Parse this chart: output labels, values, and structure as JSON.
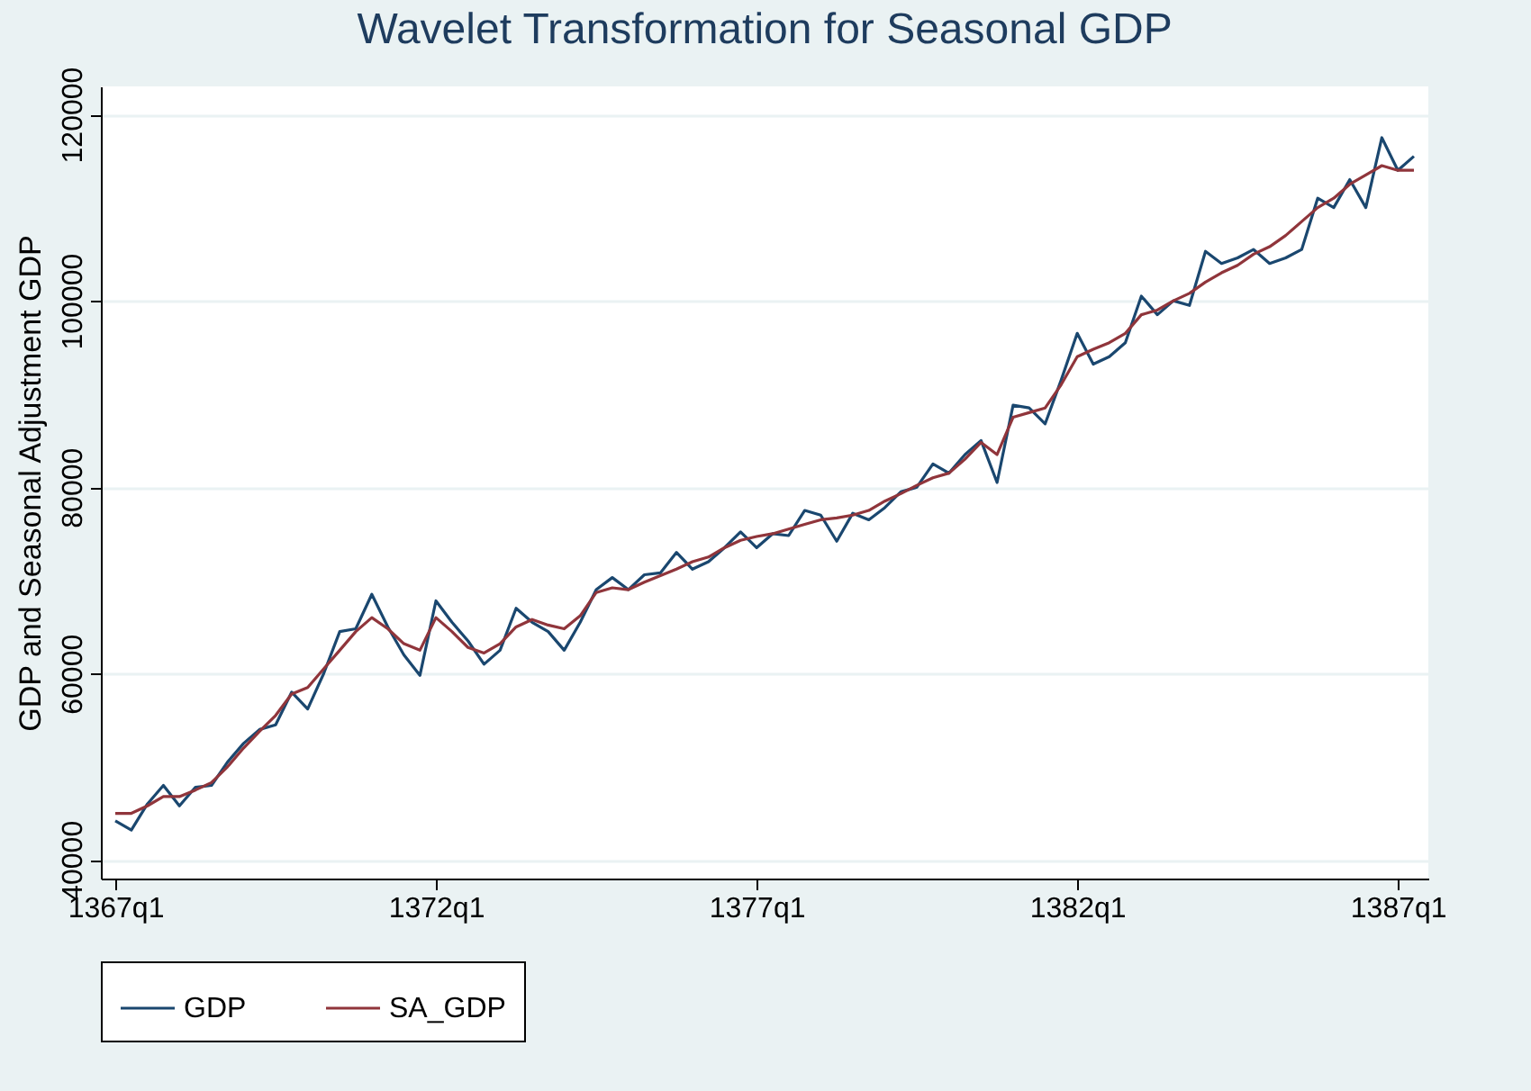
{
  "chart_data": {
    "type": "line",
    "title": "Wavelet Transformation for Seasonal GDP",
    "ylabel": "GDP and Seasonal Adjustment GDP",
    "categories": [
      "1367q1",
      null,
      null,
      null,
      null,
      null,
      null,
      null,
      null,
      null,
      null,
      null,
      null,
      null,
      null,
      null,
      null,
      null,
      null,
      null,
      "1372q1",
      null,
      null,
      null,
      null,
      null,
      null,
      null,
      null,
      null,
      null,
      null,
      null,
      null,
      null,
      null,
      null,
      null,
      null,
      null,
      "1377q1",
      null,
      null,
      null,
      null,
      null,
      null,
      null,
      null,
      null,
      null,
      null,
      null,
      null,
      null,
      null,
      null,
      null,
      null,
      null,
      "1382q1",
      null,
      null,
      null,
      null,
      null,
      null,
      null,
      null,
      null,
      null,
      null,
      null,
      null,
      null,
      null,
      null,
      null,
      null,
      null,
      "1387q1",
      null
    ],
    "series": [
      {
        "name": "GDP",
        "color": "#1a476f",
        "values": [
          44200,
          43200,
          46000,
          48000,
          45800,
          47800,
          48000,
          50500,
          52500,
          54000,
          54500,
          58000,
          56200,
          60000,
          64500,
          64800,
          68500,
          65000,
          62000,
          59800,
          67800,
          65500,
          63500,
          61000,
          62500,
          67000,
          65500,
          64500,
          62500,
          65500,
          69000,
          70300,
          69000,
          70600,
          70800,
          73000,
          71200,
          72000,
          73500,
          75200,
          73500,
          75000,
          74800,
          77500,
          77000,
          74200,
          77200,
          76500,
          77800,
          79500,
          80000,
          82500,
          81500,
          83500,
          85000,
          80500,
          88800,
          88500,
          86800,
          91500,
          96500,
          93200,
          94000,
          95500,
          100500,
          98500,
          100000,
          99500,
          105300,
          104000,
          104600,
          105500,
          104000,
          104600,
          105500,
          111000,
          110000,
          113000,
          110000,
          117500,
          114000,
          115500
        ]
      },
      {
        "name": "SA_GDP",
        "color": "#90353b",
        "values": [
          45000,
          45000,
          45800,
          46800,
          46800,
          47500,
          48300,
          50000,
          52000,
          53800,
          55500,
          57800,
          58500,
          60500,
          62500,
          64500,
          66000,
          64800,
          63200,
          62500,
          66000,
          64500,
          62800,
          62200,
          63200,
          65000,
          65800,
          65200,
          64800,
          66200,
          68700,
          69200,
          69000,
          69800,
          70500,
          71200,
          72000,
          72500,
          73500,
          74300,
          74700,
          75000,
          75500,
          76000,
          76500,
          76700,
          77000,
          77500,
          78500,
          79300,
          80200,
          81000,
          81500,
          83000,
          84800,
          83500,
          87500,
          88000,
          88500,
          91000,
          94000,
          94800,
          95500,
          96500,
          98500,
          99000,
          100000,
          100800,
          102000,
          103000,
          103800,
          105000,
          105800,
          107000,
          108500,
          110000,
          111000,
          112500,
          113500,
          114500,
          114000,
          114000
        ]
      }
    ],
    "ylim": [
      38000,
      123000
    ],
    "yticks": [
      40000,
      60000,
      80000,
      100000,
      120000
    ],
    "grid": "y",
    "legend": "bottom",
    "line_style": "solid"
  }
}
